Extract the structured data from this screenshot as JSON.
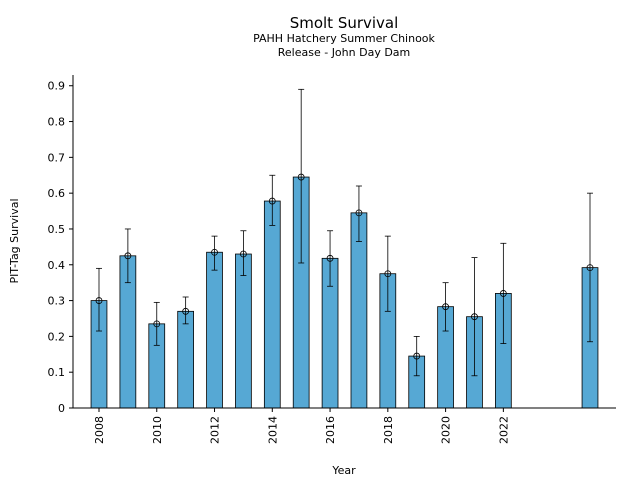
{
  "chart_data": {
    "type": "bar",
    "title": "Smolt Survival",
    "subtitle_lines": [
      "PAHH Hatchery Summer Chinook",
      "Release - John Day Dam"
    ],
    "xlabel": "Year",
    "ylabel": "PIT-Tag Survival",
    "ylim": [
      0,
      0.93
    ],
    "yticks": [
      0,
      0.1,
      0.2,
      0.3,
      0.4,
      0.5,
      0.6,
      0.7,
      0.8,
      0.9
    ],
    "ytick_labels": [
      "0",
      "0.1",
      "0.2",
      "0.3",
      "0.4",
      "0.5",
      "0.6",
      "0.7",
      "0.8",
      "0.9"
    ],
    "xticks": [
      2008,
      2010,
      2012,
      2014,
      2016,
      2018,
      2020,
      2022
    ],
    "xtick_labels": [
      "2008",
      "2010",
      "2012",
      "2014",
      "2016",
      "2018",
      "2020",
      "2022"
    ],
    "xlim": [
      2007.1,
      2025.9
    ],
    "bar_color": "#56a8d4",
    "bars": [
      {
        "x": 2008,
        "value": 0.3,
        "lower": 0.215,
        "upper": 0.39
      },
      {
        "x": 2009,
        "value": 0.425,
        "lower": 0.35,
        "upper": 0.5
      },
      {
        "x": 2010,
        "value": 0.235,
        "lower": 0.175,
        "upper": 0.295
      },
      {
        "x": 2011,
        "value": 0.27,
        "lower": 0.235,
        "upper": 0.31
      },
      {
        "x": 2012,
        "value": 0.435,
        "lower": 0.385,
        "upper": 0.48
      },
      {
        "x": 2013,
        "value": 0.43,
        "lower": 0.37,
        "upper": 0.495
      },
      {
        "x": 2014,
        "value": 0.578,
        "lower": 0.51,
        "upper": 0.65
      },
      {
        "x": 2015,
        "value": 0.645,
        "lower": 0.405,
        "upper": 0.89
      },
      {
        "x": 2016,
        "value": 0.418,
        "lower": 0.34,
        "upper": 0.495
      },
      {
        "x": 2017,
        "value": 0.545,
        "lower": 0.465,
        "upper": 0.62
      },
      {
        "x": 2018,
        "value": 0.375,
        "lower": 0.27,
        "upper": 0.48
      },
      {
        "x": 2019,
        "value": 0.145,
        "lower": 0.09,
        "upper": 0.2
      },
      {
        "x": 2020,
        "value": 0.283,
        "lower": 0.215,
        "upper": 0.35
      },
      {
        "x": 2021,
        "value": 0.255,
        "lower": 0.09,
        "upper": 0.42
      },
      {
        "x": 2022,
        "value": 0.32,
        "lower": 0.18,
        "upper": 0.46
      },
      {
        "x": 2025,
        "value": 0.392,
        "lower": 0.185,
        "upper": 0.6
      }
    ]
  }
}
